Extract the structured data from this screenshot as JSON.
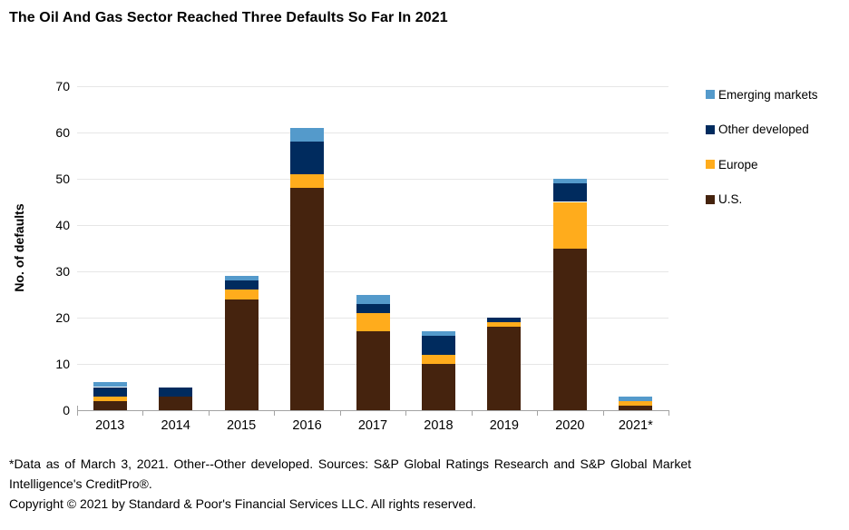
{
  "title": "The Oil And Gas Sector Reached Three Defaults So Far In 2021",
  "chart_data": {
    "type": "bar",
    "stacked": true,
    "title": "The Oil And Gas Sector Reached Three Defaults So Far In 2021",
    "categories": [
      "2013",
      "2014",
      "2015",
      "2016",
      "2017",
      "2018",
      "2019",
      "2020",
      "2021*"
    ],
    "series": [
      {
        "name": "U.S.",
        "color": "#45230E",
        "values": [
          2,
          3,
          24,
          48,
          17,
          10,
          18,
          35,
          1
        ]
      },
      {
        "name": "Europe",
        "color": "#FFAC1C",
        "values": [
          1,
          0,
          2,
          3,
          4,
          2,
          1,
          10,
          1
        ]
      },
      {
        "name": "Other developed",
        "color": "#002B5E",
        "values": [
          2,
          2,
          2,
          7,
          2,
          4,
          1,
          4,
          0
        ]
      },
      {
        "name": "Emerging markets",
        "color": "#549ACB",
        "values": [
          1,
          0,
          1,
          3,
          2,
          1,
          0,
          1,
          1
        ]
      }
    ],
    "totals": [
      6,
      5,
      29,
      61,
      25,
      17,
      20,
      50,
      3
    ],
    "xlabel": "",
    "ylabel": "No. of defaults",
    "ylim": [
      0,
      70
    ],
    "yticks": [
      0,
      10,
      20,
      30,
      40,
      50,
      60,
      70
    ],
    "grid": "horizontal",
    "legend_position": "right",
    "legend_order": [
      "Emerging markets",
      "Other developed",
      "Europe",
      "U.S."
    ]
  },
  "colors": {
    "gridline": "#E6E6E6",
    "axis": "#A3A3A3",
    "text": "#000000"
  },
  "footnotes": {
    "line1": "*Data as of March 3, 2021. Other--Other developed. Sources: S&P Global Ratings Research and S&P Global Market Intelligence's CreditPro®.",
    "line2": "Copyright © 2021 by Standard & Poor's Financial Services LLC. All rights reserved."
  }
}
